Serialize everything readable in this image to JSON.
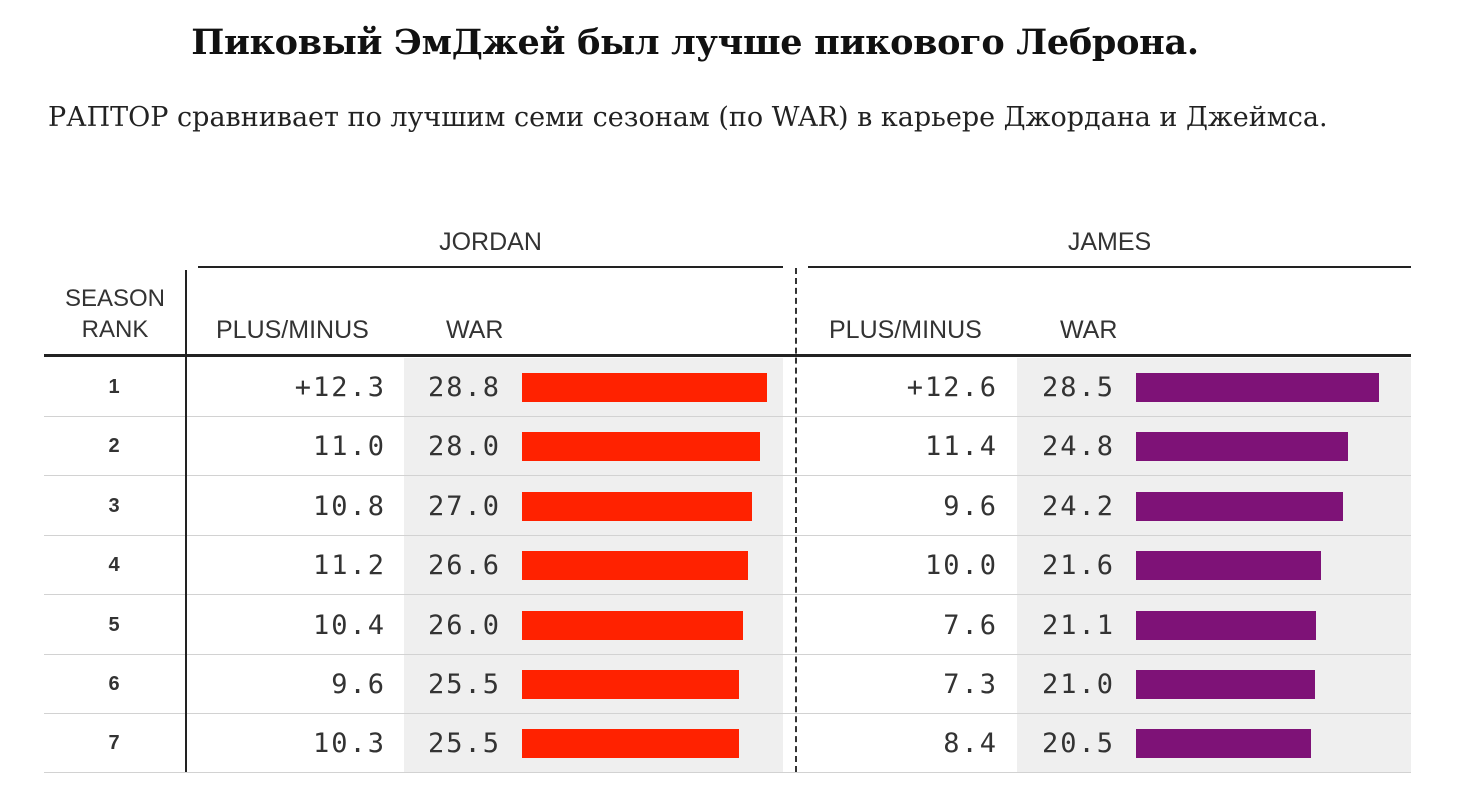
{
  "title": "Пиковый ЭмДжей был лучше пикового Леброна.",
  "subtitle": "РАПТОР сравнивает по лучшим семи сезонам (по WAR) в карьере Джордана и Джеймса.",
  "header": {
    "season_rank": "SEASON\nRANK",
    "players": [
      "JORDAN",
      "JAMES"
    ],
    "plus_minus": "PLUS/MINUS",
    "war": "WAR"
  },
  "colors": {
    "jordan": "#ff2200",
    "james": "#7e1277",
    "shade": "#efefef"
  },
  "chart_data": {
    "type": "table",
    "war_scale": [
      0,
      28.8
    ],
    "rows": [
      {
        "rank": "1",
        "jordan": {
          "plus_minus": "+12.3",
          "war": 28.8
        },
        "james": {
          "plus_minus": "+12.6",
          "war": 28.5
        }
      },
      {
        "rank": "2",
        "jordan": {
          "plus_minus": "11.0",
          "war": 28.0
        },
        "james": {
          "plus_minus": "11.4",
          "war": 24.8
        }
      },
      {
        "rank": "3",
        "jordan": {
          "plus_minus": "10.8",
          "war": 27.0
        },
        "james": {
          "plus_minus": "9.6",
          "war": 24.2
        }
      },
      {
        "rank": "4",
        "jordan": {
          "plus_minus": "11.2",
          "war": 26.6
        },
        "james": {
          "plus_minus": "10.0",
          "war": 21.6
        }
      },
      {
        "rank": "5",
        "jordan": {
          "plus_minus": "10.4",
          "war": 26.0
        },
        "james": {
          "plus_minus": "7.6",
          "war": 21.1
        }
      },
      {
        "rank": "6",
        "jordan": {
          "plus_minus": "9.6",
          "war": 25.5
        },
        "james": {
          "plus_minus": "7.3",
          "war": 21.0
        }
      },
      {
        "rank": "7",
        "jordan": {
          "plus_minus": "10.3",
          "war": 25.5
        },
        "james": {
          "plus_minus": "8.4",
          "war": 20.5
        }
      }
    ]
  }
}
